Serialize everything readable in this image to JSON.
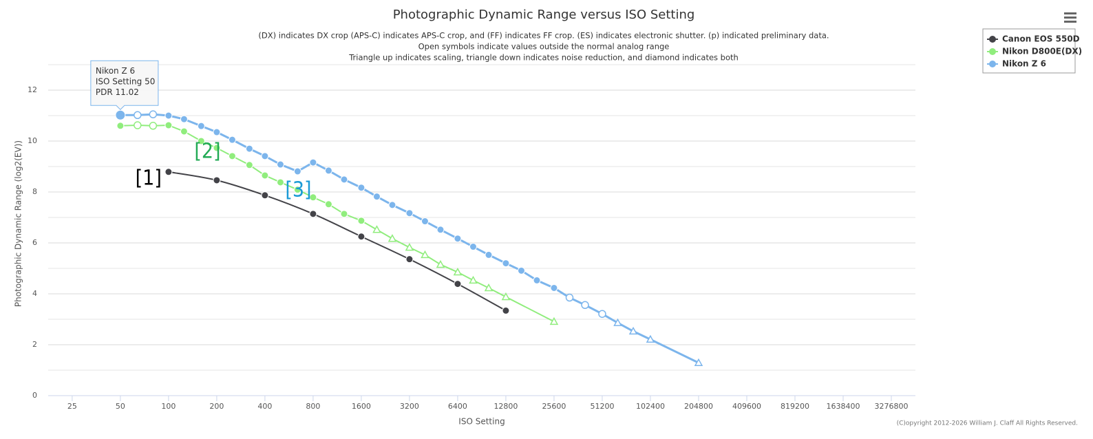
{
  "chart_data": {
    "type": "line",
    "title": "Photographic Dynamic Range versus ISO Setting",
    "subtitle": [
      "(DX) indicates DX crop (APS-C) indicates APS-C crop, and (FF) indicates FF crop. (ES) indicates electronic shutter. (p) indicated preliminary data.",
      "Open symbols indicate values outside the normal analog range",
      "Triangle up indicates scaling, triangle down indicates noise reduction, and diamond indicates both"
    ],
    "x_label": "ISO Setting",
    "y_label": "Photographic Dynamic Range (log2(EV))",
    "x_log_base": 2,
    "xlim": [
      17.7,
      4634000
    ],
    "xticks": [
      25,
      50,
      100,
      200,
      400,
      800,
      1600,
      3200,
      6400,
      12800,
      25600,
      51200,
      102400,
      204800,
      409600,
      819200,
      1638400,
      3276800
    ],
    "ylim": [
      0,
      13
    ],
    "yticks": [
      0,
      2,
      4,
      6,
      8,
      10,
      12
    ],
    "y_minor_grid": [
      1,
      3,
      5,
      7,
      9,
      11,
      13
    ],
    "grid": true,
    "legend_position": "top-right",
    "series": [
      {
        "name": "Canon EOS 550D",
        "color": "#434348",
        "smooth": true,
        "x": [
          100,
          200,
          400,
          800,
          1600,
          3200,
          6400,
          12800
        ],
        "values": [
          8.79,
          8.46,
          7.87,
          7.14,
          6.25,
          5.36,
          4.39,
          3.34
        ],
        "markers": [
          "filled",
          "filled",
          "filled",
          "filled",
          "filled",
          "filled",
          "filled",
          "filled"
        ]
      },
      {
        "name": "Nikon D800E(DX)",
        "color": "#90ed7d",
        "smooth": false,
        "x": [
          50,
          64,
          80,
          100,
          125,
          160,
          200,
          250,
          320,
          400,
          500,
          640,
          800,
          1000,
          1250,
          1600,
          2000,
          2500,
          3200,
          4000,
          5000,
          6400,
          8000,
          10000,
          12800,
          25600
        ],
        "values": [
          10.6,
          10.62,
          10.6,
          10.62,
          10.38,
          10.0,
          9.73,
          9.41,
          9.06,
          8.65,
          8.38,
          8.09,
          7.79,
          7.52,
          7.14,
          6.87,
          6.52,
          6.17,
          5.82,
          5.53,
          5.15,
          4.85,
          4.53,
          4.23,
          3.88,
          2.91
        ],
        "markers": [
          "filled",
          "open",
          "open",
          "filled",
          "filled",
          "filled",
          "filled",
          "filled",
          "filled",
          "filled",
          "filled",
          "filled",
          "filled",
          "filled",
          "filled",
          "filled",
          "triangle",
          "triangle",
          "triangle",
          "triangle",
          "triangle",
          "triangle",
          "triangle",
          "triangle",
          "triangle",
          "triangle"
        ]
      },
      {
        "name": "Nikon Z 6",
        "color": "#7cb5ec",
        "smooth": false,
        "x": [
          50,
          64,
          80,
          100,
          125,
          160,
          200,
          250,
          320,
          400,
          500,
          640,
          800,
          1000,
          1250,
          1600,
          2000,
          2500,
          3200,
          4000,
          5000,
          6400,
          8000,
          10000,
          12800,
          16000,
          20000,
          25600,
          32000,
          40000,
          51200,
          64000,
          80000,
          102400,
          204800
        ],
        "values": [
          11.02,
          11.02,
          11.05,
          11.0,
          10.86,
          10.59,
          10.35,
          10.05,
          9.7,
          9.41,
          9.08,
          8.81,
          9.16,
          8.84,
          8.49,
          8.17,
          7.82,
          7.49,
          7.17,
          6.85,
          6.52,
          6.17,
          5.85,
          5.53,
          5.2,
          4.91,
          4.53,
          4.23,
          3.85,
          3.56,
          3.21,
          2.86,
          2.53,
          2.21,
          1.29
        ],
        "markers": [
          "filled",
          "open",
          "open",
          "filled",
          "filled",
          "filled",
          "filled",
          "filled",
          "filled",
          "filled",
          "filled",
          "filled",
          "filled",
          "filled",
          "filled",
          "filled",
          "filled",
          "filled",
          "filled",
          "filled",
          "filled",
          "filled",
          "filled",
          "filled",
          "filled",
          "filled",
          "filled",
          "filled",
          "open",
          "open",
          "open",
          "triangle",
          "triangle",
          "triangle",
          "triangle"
        ]
      }
    ],
    "annotations": [
      {
        "text": "[1]",
        "color": "#000000",
        "x": 100,
        "y": 8.79
      },
      {
        "text": "[2]",
        "color": "#22aa55",
        "x": 160,
        "y": 10.0
      },
      {
        "text": "[3]",
        "color": "#1a9ad6",
        "x": 640,
        "y": 8.81
      }
    ],
    "tooltip": [
      "Nikon Z 6",
      "ISO Setting 50",
      "PDR 11.02"
    ],
    "credit": "(C)opyright 2012-2026 William J. Claff All Rights Reserved."
  }
}
